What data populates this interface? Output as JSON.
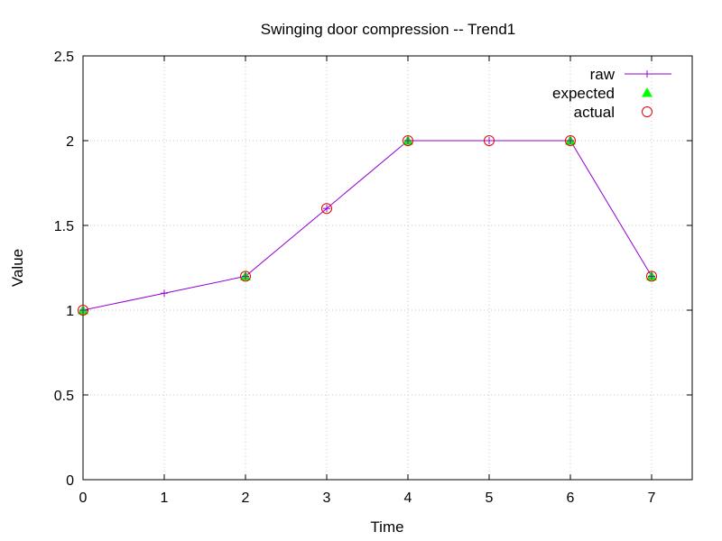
{
  "chart_data": {
    "type": "line",
    "title": "Swinging door compression -- Trend1",
    "xlabel": "Time",
    "ylabel": "Value",
    "xlim": [
      0,
      7.5
    ],
    "ylim": [
      0,
      2.5
    ],
    "xticks": [
      "0",
      "1",
      "2",
      "3",
      "4",
      "5",
      "6",
      "7"
    ],
    "yticks": [
      "0",
      "0.5",
      "1",
      "1.5",
      "2",
      "2.5"
    ],
    "grid": true,
    "legend_position": "top-right",
    "series": [
      {
        "name": "raw",
        "style": "line-with-plus-markers",
        "color": "#9400d3",
        "x": [
          0,
          1,
          2,
          3,
          4,
          5,
          6,
          7
        ],
        "y": [
          1.0,
          1.1,
          1.2,
          1.6,
          2.0,
          2.0,
          2.0,
          1.2
        ]
      },
      {
        "name": "expected",
        "style": "filled-triangles",
        "color": "#00ff00",
        "x": [
          0,
          2,
          4,
          6,
          7
        ],
        "y": [
          1.0,
          1.2,
          2.0,
          2.0,
          1.2
        ]
      },
      {
        "name": "actual",
        "style": "open-circles",
        "color": "#e00000",
        "x": [
          0,
          2,
          3,
          4,
          5,
          6,
          7
        ],
        "y": [
          1.0,
          1.2,
          1.6,
          2.0,
          2.0,
          2.0,
          1.2
        ]
      }
    ]
  }
}
